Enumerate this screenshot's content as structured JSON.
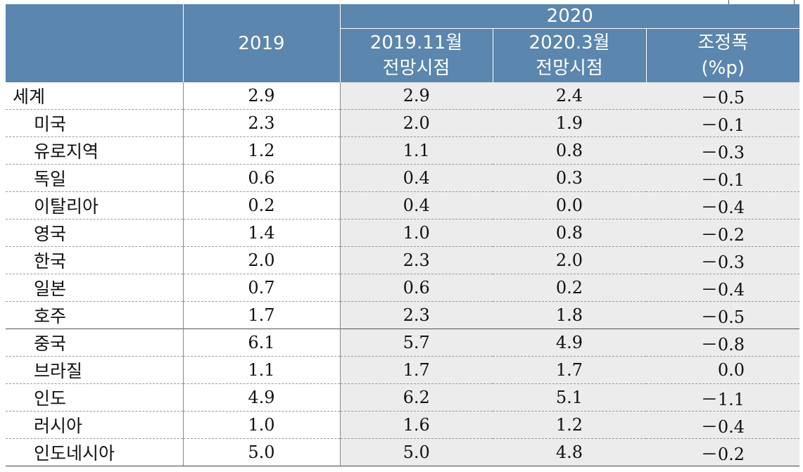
{
  "header": {
    "year_group": "2020",
    "col_2019": "2019",
    "col_nov_line1": "2019.11월",
    "col_nov_line2": "전망시점",
    "col_mar_line1": "2020.3월",
    "col_mar_line2": "전망시점",
    "col_adj_line1": "조정폭",
    "col_adj_line2": "(%p)"
  },
  "rows": [
    {
      "name": "세계",
      "v2019": "2.9",
      "nov": "2.9",
      "mar": "2.4",
      "adj": "－0.5"
    },
    {
      "name": "미국",
      "v2019": "2.3",
      "nov": "2.0",
      "mar": "1.9",
      "adj": "－0.1"
    },
    {
      "name": "유로지역",
      "v2019": "1.2",
      "nov": "1.1",
      "mar": "0.8",
      "adj": "－0.3"
    },
    {
      "name": "독일",
      "v2019": "0.6",
      "nov": "0.4",
      "mar": "0.3",
      "adj": "－0.1"
    },
    {
      "name": "이탈리아",
      "v2019": "0.2",
      "nov": "0.4",
      "mar": "0.0",
      "adj": "－0.4"
    },
    {
      "name": "영국",
      "v2019": "1.4",
      "nov": "1.0",
      "mar": "0.8",
      "adj": "－0.2"
    },
    {
      "name": "한국",
      "v2019": "2.0",
      "nov": "2.3",
      "mar": "2.0",
      "adj": "－0.3"
    },
    {
      "name": "일본",
      "v2019": "0.7",
      "nov": "0.6",
      "mar": "0.2",
      "adj": "－0.4"
    },
    {
      "name": "호주",
      "v2019": "1.7",
      "nov": "2.3",
      "mar": "1.8",
      "adj": "－0.5"
    },
    {
      "name": "중국",
      "v2019": "6.1",
      "nov": "5.7",
      "mar": "4.9",
      "adj": "－0.8"
    },
    {
      "name": "브라질",
      "v2019": "1.1",
      "nov": "1.7",
      "mar": "1.7",
      "adj": "0.0"
    },
    {
      "name": "인도",
      "v2019": "4.9",
      "nov": "6.2",
      "mar": "5.1",
      "adj": "－1.1"
    },
    {
      "name": "러시아",
      "v2019": "1.0",
      "nov": "1.6",
      "mar": "1.2",
      "adj": "－0.4"
    },
    {
      "name": "인도네시아",
      "v2019": "5.0",
      "nov": "5.0",
      "mar": "4.8",
      "adj": "－0.2"
    }
  ]
}
